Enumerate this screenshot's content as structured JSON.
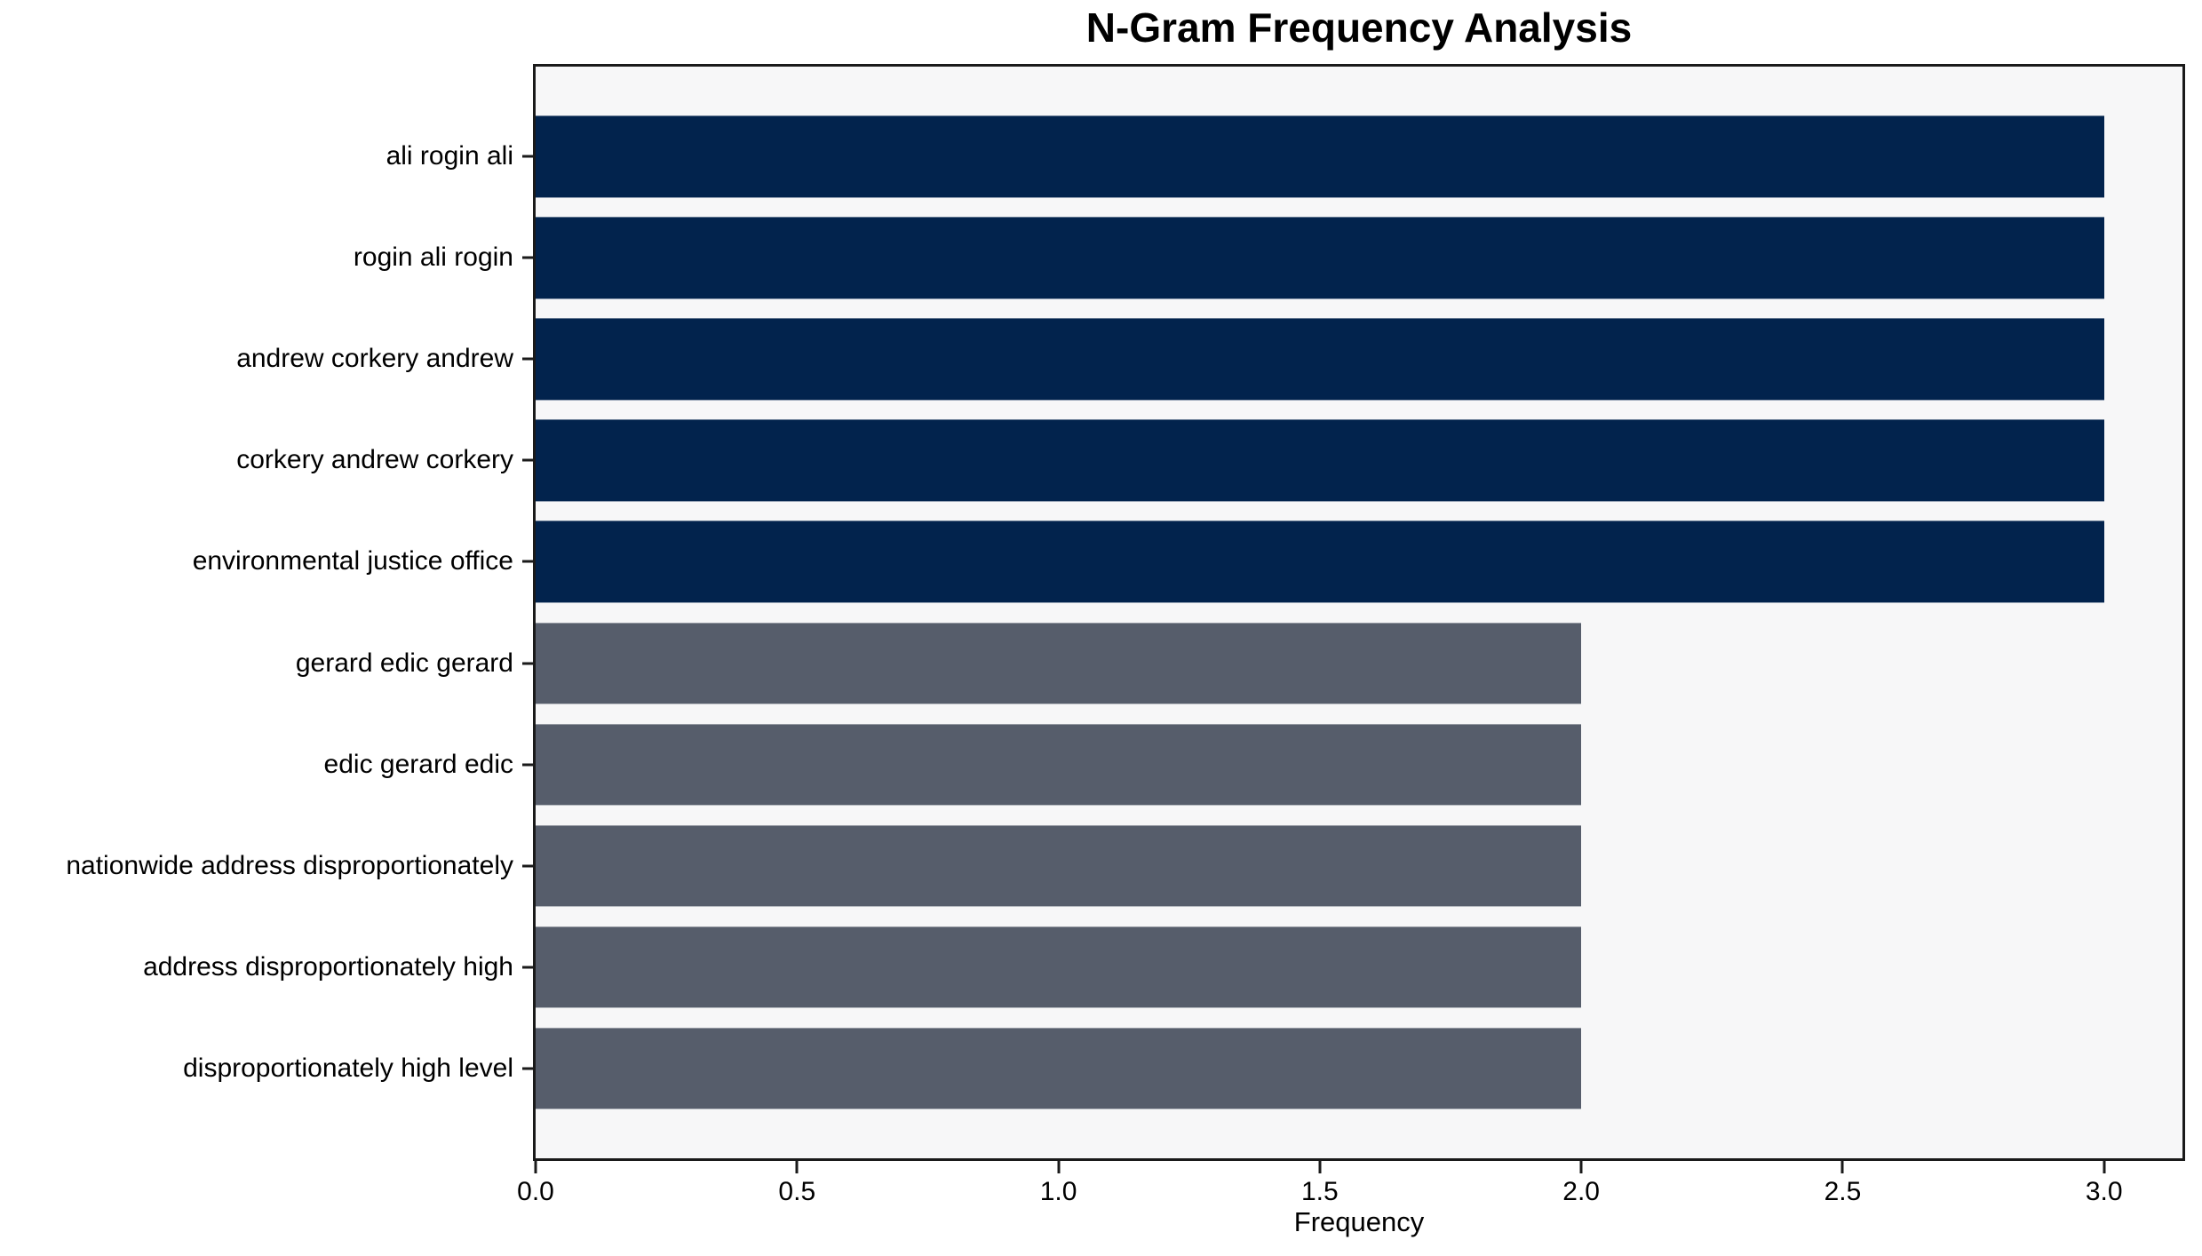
{
  "chart_data": {
    "type": "bar",
    "orientation": "horizontal",
    "title": "N-Gram Frequency Analysis",
    "xlabel": "Frequency",
    "ylabel": "",
    "categories": [
      "ali rogin ali",
      "rogin ali rogin",
      "andrew corkery andrew",
      "corkery andrew corkery",
      "environmental justice office",
      "gerard edic gerard",
      "edic gerard edic",
      "nationwide address disproportionately",
      "address disproportionately high",
      "disproportionately high level"
    ],
    "values": [
      3,
      3,
      3,
      3,
      3,
      2,
      2,
      2,
      2,
      2
    ],
    "bar_colors": [
      "#02234d",
      "#02234d",
      "#02234d",
      "#02234d",
      "#02234d",
      "#565d6b",
      "#565d6b",
      "#565d6b",
      "#565d6b",
      "#565d6b"
    ],
    "xlim": [
      0,
      3.15
    ],
    "xticks": [
      0,
      0.5,
      1,
      1.5,
      2,
      2.5,
      3
    ],
    "xtick_labels": [
      "0.0",
      "0.5",
      "1.0",
      "1.5",
      "2.0",
      "2.5",
      "3.0"
    ],
    "grid": false,
    "legend": false,
    "colors": {
      "bar_high": "#02234d",
      "bar_low": "#565d6b",
      "plot_background": "#f7f7f8",
      "axis": "#1a1a1a",
      "figure_background": "#ffffff"
    }
  }
}
